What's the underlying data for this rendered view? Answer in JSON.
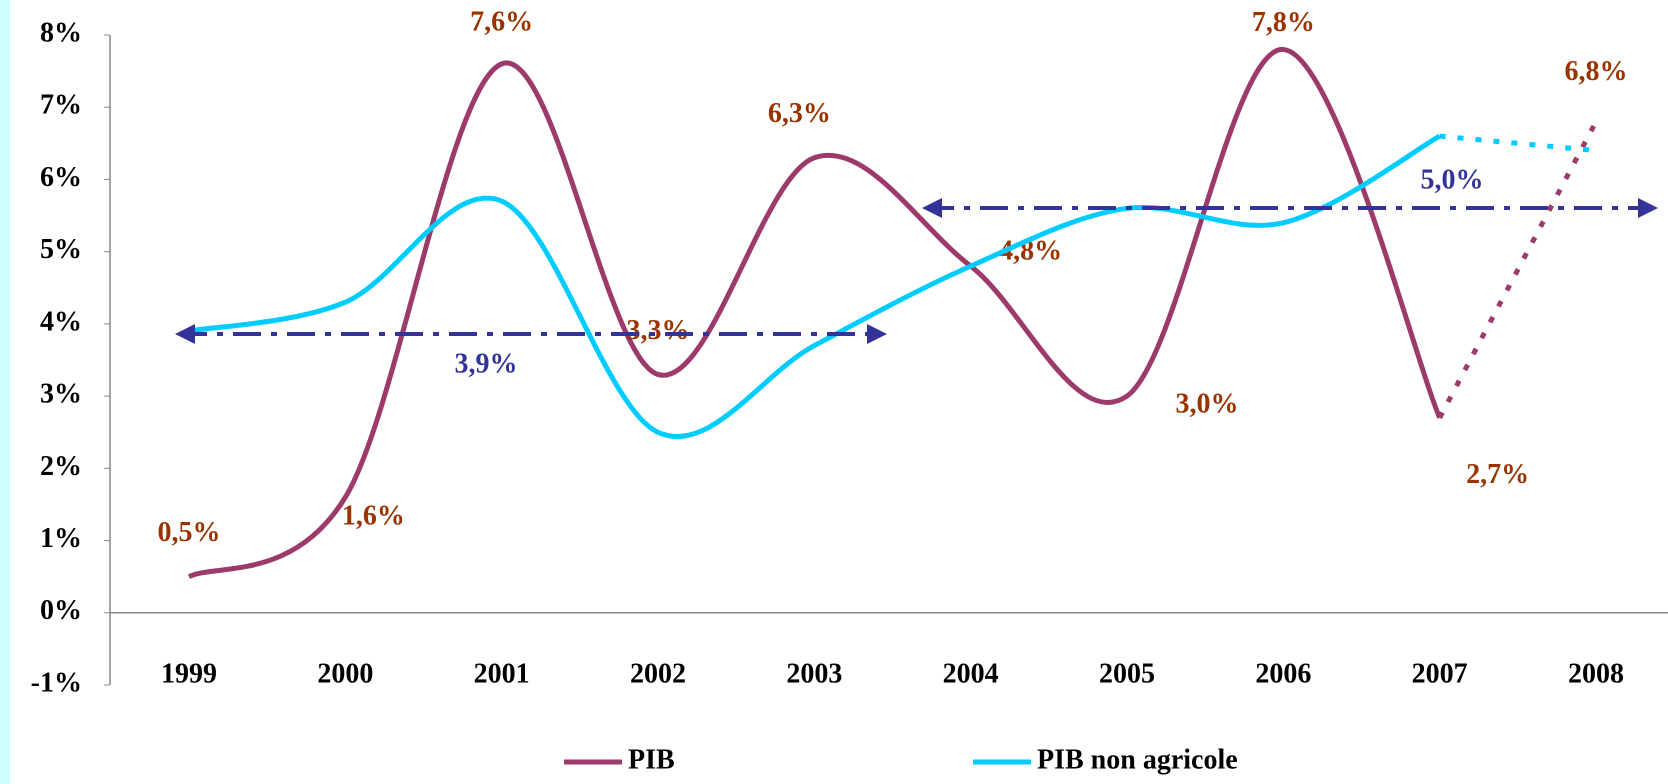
{
  "chart_data": {
    "type": "line",
    "categories": [
      "1999",
      "2000",
      "2001",
      "2002",
      "2003",
      "2004",
      "2005",
      "2006",
      "2007",
      "2008"
    ],
    "series": [
      {
        "name": "PIB",
        "color": "#9b3a6b",
        "values": [
          0.5,
          1.6,
          7.6,
          3.3,
          6.3,
          4.8,
          3.0,
          7.8,
          2.7,
          6.8
        ],
        "value_labels": [
          "0,5%",
          "1,6%",
          "7,6%",
          "3,3%",
          "6,3%",
          "4,8%",
          "3,0%",
          "7,8%",
          "2,7%",
          "6,8%"
        ]
      },
      {
        "name": "PIB non agricole",
        "color": "#00ccff",
        "values": [
          3.9,
          4.3,
          5.7,
          2.5,
          3.7,
          4.8,
          5.6,
          5.4,
          6.6,
          6.4
        ]
      }
    ],
    "annotations": [
      {
        "label": "3,9%",
        "color": "#333399"
      },
      {
        "label": "5,0%",
        "color": "#333399"
      }
    ],
    "ylim": [
      -1,
      8
    ],
    "yticks": [
      {
        "value": -1,
        "label": "-1%"
      },
      {
        "value": 0,
        "label": "0%"
      },
      {
        "value": 1,
        "label": "1%"
      },
      {
        "value": 2,
        "label": "2%"
      },
      {
        "value": 3,
        "label": "3%"
      },
      {
        "value": 4,
        "label": "4%"
      },
      {
        "value": 5,
        "label": "5%"
      },
      {
        "value": 6,
        "label": "6%"
      },
      {
        "value": 7,
        "label": "7%"
      },
      {
        "value": 8,
        "label": "8%"
      }
    ],
    "label_color": "#993300"
  }
}
